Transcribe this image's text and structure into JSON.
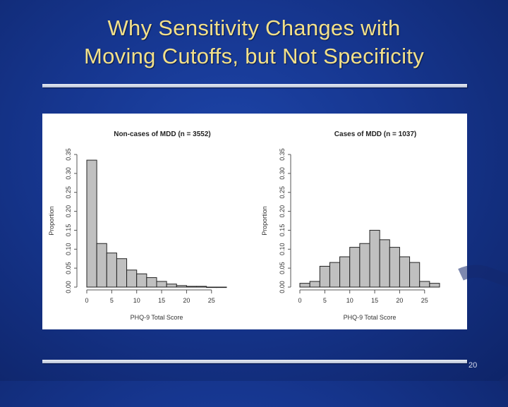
{
  "slide": {
    "title_line1": "Why Sensitivity Changes with",
    "title_line2": "Moving Cutoffs, but Not Specificity",
    "page_number": "20"
  },
  "chart_data": [
    {
      "type": "bar",
      "title": "Non-cases of MDD (n = 3552)",
      "xlabel": "PHQ-9 Total Score",
      "ylabel": "Proportion",
      "bin_edges": [
        0,
        2,
        4,
        6,
        8,
        10,
        12,
        14,
        16,
        18,
        20,
        22,
        24,
        26,
        28
      ],
      "values": [
        0.335,
        0.115,
        0.09,
        0.075,
        0.045,
        0.035,
        0.025,
        0.015,
        0.008,
        0.004,
        0.002,
        0.002,
        0,
        0
      ],
      "xticks": [
        "0",
        "5",
        "10",
        "15",
        "20",
        "25"
      ],
      "xtick_values": [
        0,
        5,
        10,
        15,
        20,
        25
      ],
      "yticks": [
        "0.00",
        "0.05",
        "0.10",
        "0.15",
        "0.20",
        "0.25",
        "0.30",
        "0.35"
      ],
      "ytick_values": [
        0,
        0.05,
        0.1,
        0.15,
        0.2,
        0.25,
        0.3,
        0.35
      ],
      "xlim": [
        0,
        28
      ],
      "ylim": [
        0,
        0.35
      ],
      "bar_color": "#c0c0c0"
    },
    {
      "type": "bar",
      "title": "Cases of MDD (n = 1037)",
      "xlabel": "PHQ-9 Total Score",
      "ylabel": "Proportion",
      "bin_edges": [
        0,
        2,
        4,
        6,
        8,
        10,
        12,
        14,
        16,
        18,
        20,
        22,
        24,
        26,
        28
      ],
      "values": [
        0.01,
        0.015,
        0.055,
        0.065,
        0.08,
        0.105,
        0.115,
        0.15,
        0.125,
        0.105,
        0.08,
        0.065,
        0.015,
        0.01
      ],
      "xticks": [
        "0",
        "5",
        "10",
        "15",
        "20",
        "25"
      ],
      "xtick_values": [
        0,
        5,
        10,
        15,
        20,
        25
      ],
      "yticks": [
        "0.00",
        "0.05",
        "0.10",
        "0.15",
        "0.20",
        "0.25",
        "0.30",
        "0.35"
      ],
      "ytick_values": [
        0,
        0.05,
        0.1,
        0.15,
        0.2,
        0.25,
        0.3,
        0.35
      ],
      "xlim": [
        0,
        28
      ],
      "ylim": [
        0,
        0.35
      ],
      "bar_color": "#c0c0c0"
    }
  ]
}
